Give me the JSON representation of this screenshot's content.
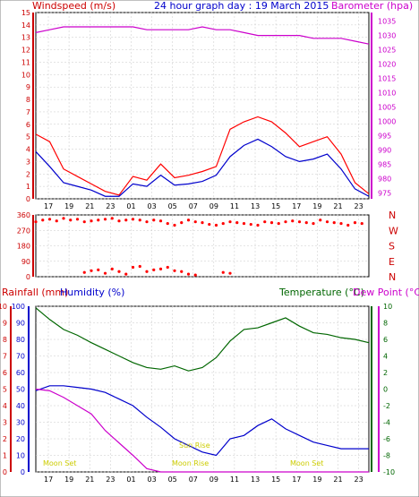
{
  "title": "24 hour graph day : 19 March 2015",
  "colors": {
    "wind_speed": "#ff0000",
    "wind_gust": "#cc0000",
    "wind_avg": "#0000cc",
    "barometer": "#cc00cc",
    "wind_dir": "#ff0000",
    "rainfall": "#ff0000",
    "humidity": "#0000cc",
    "temperature": "#006600",
    "dew_point": "#cc00cc",
    "moon_sun": "#cccc00",
    "axis_blue": "#0000cc",
    "axis_red": "#cc0000",
    "axis_green": "#006600"
  },
  "time_ticks": [
    "17",
    "19",
    "21",
    "23",
    "01",
    "03",
    "05",
    "07",
    "09",
    "11",
    "13",
    "15",
    "17",
    "19",
    "21",
    "23"
  ],
  "chart_data": [
    {
      "type": "line",
      "name": "wind-barometer",
      "left_label": "Windspeed (m/s)",
      "right_label": "Barometer (hpa)",
      "left_ticks": [
        0,
        1,
        2,
        3,
        4,
        5,
        6,
        7,
        8,
        9,
        10,
        11,
        12,
        13,
        14,
        15
      ],
      "right_ticks": [
        975,
        980,
        985,
        990,
        995,
        1000,
        1005,
        1010,
        1015,
        1020,
        1025,
        1030,
        1035
      ],
      "left_range": [
        0,
        15
      ],
      "right_range": [
        973,
        1038
      ],
      "hours": [
        0,
        1,
        2,
        3,
        4,
        5,
        6,
        7,
        8,
        9,
        10,
        11,
        12,
        13,
        14,
        15,
        16,
        17,
        18,
        19,
        20,
        21,
        22,
        23,
        24
      ],
      "series": [
        {
          "key": "gust",
          "values": [
            5.2,
            4.6,
            2.4,
            1.8,
            1.2,
            0.6,
            0.3,
            1.8,
            1.5,
            2.8,
            1.7,
            1.9,
            2.2,
            2.6,
            5.6,
            6.2,
            6.6,
            6.2,
            5.3,
            4.2,
            4.6,
            5.0,
            3.6,
            1.3,
            0.4
          ]
        },
        {
          "key": "avg",
          "values": [
            3.8,
            2.6,
            1.3,
            1.0,
            0.7,
            0.2,
            0.2,
            1.2,
            1.0,
            1.9,
            1.1,
            1.2,
            1.4,
            1.9,
            3.4,
            4.3,
            4.8,
            4.2,
            3.4,
            3.0,
            3.2,
            3.6,
            2.4,
            0.8,
            0.2
          ]
        },
        {
          "key": "baro",
          "values": [
            1031,
            1032,
            1033,
            1033,
            1033,
            1033,
            1033,
            1033,
            1032,
            1032,
            1032,
            1032,
            1033,
            1032,
            1032,
            1031,
            1030,
            1030,
            1030,
            1030,
            1029,
            1029,
            1029,
            1028,
            1027
          ]
        }
      ]
    },
    {
      "type": "scatter",
      "name": "wind-direction",
      "right_ticks": [
        "N",
        "W",
        "S",
        "E",
        "N"
      ],
      "left_ticks": [
        0,
        90,
        180,
        270,
        360
      ],
      "y_range": [
        0,
        360
      ],
      "points": [
        [
          0,
          320
        ],
        [
          0.5,
          330
        ],
        [
          1,
          335
        ],
        [
          1.5,
          325
        ],
        [
          2,
          340
        ],
        [
          2.5,
          330
        ],
        [
          3,
          335
        ],
        [
          3.5,
          320
        ],
        [
          4,
          325
        ],
        [
          4.5,
          330
        ],
        [
          5,
          335
        ],
        [
          5.5,
          340
        ],
        [
          6,
          325
        ],
        [
          6.5,
          330
        ],
        [
          7,
          335
        ],
        [
          7.5,
          330
        ],
        [
          8,
          320
        ],
        [
          8.5,
          330
        ],
        [
          9,
          325
        ],
        [
          9.5,
          310
        ],
        [
          10,
          300
        ],
        [
          10.5,
          315
        ],
        [
          11,
          330
        ],
        [
          11.5,
          320
        ],
        [
          12,
          315
        ],
        [
          12.5,
          305
        ],
        [
          13,
          300
        ],
        [
          13.5,
          310
        ],
        [
          14,
          320
        ],
        [
          14.5,
          315
        ],
        [
          15,
          310
        ],
        [
          15.5,
          305
        ],
        [
          16,
          300
        ],
        [
          16.5,
          320
        ],
        [
          17,
          315
        ],
        [
          17.5,
          310
        ],
        [
          18,
          320
        ],
        [
          18.5,
          325
        ],
        [
          19,
          320
        ],
        [
          19.5,
          315
        ],
        [
          20,
          310
        ],
        [
          20.5,
          330
        ],
        [
          21,
          320
        ],
        [
          21.5,
          315
        ],
        [
          22,
          310
        ],
        [
          22.5,
          300
        ],
        [
          23,
          315
        ],
        [
          23.5,
          310
        ],
        [
          3.5,
          25
        ],
        [
          4,
          35
        ],
        [
          4.5,
          40
        ],
        [
          5,
          20
        ],
        [
          5.5,
          45
        ],
        [
          6,
          30
        ],
        [
          6.5,
          15
        ],
        [
          7,
          55
        ],
        [
          7.5,
          60
        ],
        [
          8,
          30
        ],
        [
          8.5,
          40
        ],
        [
          9,
          45
        ],
        [
          9.5,
          55
        ],
        [
          10,
          35
        ],
        [
          10.5,
          30
        ],
        [
          11,
          15
        ],
        [
          11.5,
          10
        ],
        [
          13.5,
          25
        ],
        [
          14,
          20
        ]
      ]
    },
    {
      "type": "line",
      "name": "rain-humidity-temp",
      "left_label_rain": "Rainfall (mm)",
      "left_label_hum": "Humidity (%)",
      "right_label_temp": "Temperature (°C)",
      "right_label_dew": "Dew Point (°C)",
      "rain_ticks": [
        0,
        1,
        2,
        3,
        4,
        5,
        6,
        7,
        8,
        9,
        10
      ],
      "hum_ticks": [
        0,
        10,
        20,
        30,
        40,
        50,
        60,
        70,
        80,
        90,
        100
      ],
      "temp_ticks": [
        -10,
        -8,
        -6,
        -4,
        -2,
        0,
        2,
        4,
        6,
        8,
        10
      ],
      "hum_range": [
        0,
        100
      ],
      "temp_range": [
        -10,
        10
      ],
      "hours": [
        0,
        1,
        2,
        3,
        4,
        5,
        6,
        7,
        8,
        9,
        10,
        11,
        12,
        13,
        14,
        15,
        16,
        17,
        18,
        19,
        20,
        21,
        22,
        23,
        24
      ],
      "series": [
        {
          "key": "temperature",
          "values": [
            9.8,
            8.4,
            7.2,
            6.5,
            5.6,
            4.8,
            4.0,
            3.2,
            2.6,
            2.4,
            2.8,
            2.2,
            2.6,
            3.8,
            5.8,
            7.2,
            7.4,
            8.0,
            8.6,
            7.6,
            6.8,
            6.6,
            6.2,
            6.0,
            5.6
          ]
        },
        {
          "key": "humidity",
          "values": [
            49,
            52,
            52,
            51,
            50,
            48,
            44,
            40,
            33,
            27,
            20,
            16,
            12,
            10,
            20,
            22,
            28,
            32,
            26,
            22,
            18,
            16,
            14,
            14,
            14
          ]
        },
        {
          "key": "dewpoint",
          "values": [
            0.0,
            -0.2,
            -1.0,
            -2.0,
            -3.0,
            -5.0,
            -6.5,
            -8.0,
            -9.6,
            -10.0,
            -10.0,
            -10.0,
            -10.0,
            -10.0,
            -10.0,
            -10.0,
            -10.0,
            -10.0,
            -10.0,
            -10.0,
            -10.0,
            -10.0,
            -10.0,
            -10.0,
            -10.0
          ]
        },
        {
          "key": "rain",
          "values": [
            0,
            0,
            0,
            0,
            0,
            0,
            0,
            0,
            0,
            0,
            0,
            0,
            0,
            0,
            0,
            0,
            0,
            0,
            0,
            0,
            0,
            0,
            0,
            0,
            0
          ]
        }
      ],
      "annotations": [
        "Moon Set",
        "Sun Rise",
        "Moon Rise",
        "Moon Set"
      ]
    }
  ]
}
